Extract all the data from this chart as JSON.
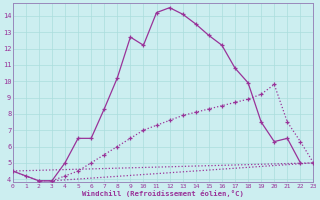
{
  "background_color": "#cceef0",
  "grid_color": "#aadddd",
  "line_color": "#993399",
  "xlim": [
    0,
    23
  ],
  "ylim": [
    3.8,
    14.8
  ],
  "xticks": [
    0,
    1,
    2,
    3,
    4,
    5,
    6,
    7,
    8,
    9,
    10,
    11,
    12,
    13,
    14,
    15,
    16,
    17,
    18,
    19,
    20,
    21,
    22,
    23
  ],
  "yticks": [
    4,
    5,
    6,
    7,
    8,
    9,
    10,
    11,
    12,
    13,
    14
  ],
  "xlabel": "Windchill (Refroidissement éolien,°C)",
  "curve1_x": [
    0,
    1,
    2,
    3,
    4,
    5,
    6,
    7,
    8,
    9,
    10,
    11,
    12,
    13,
    14,
    15,
    16,
    17,
    18,
    19,
    20,
    21,
    22
  ],
  "curve1_y": [
    4.5,
    4.2,
    3.9,
    3.9,
    5.0,
    6.5,
    6.5,
    8.3,
    10.2,
    12.7,
    12.2,
    14.2,
    14.5,
    14.1,
    13.5,
    12.8,
    12.2,
    10.8,
    9.9,
    7.5,
    6.3,
    6.5,
    5.0
  ],
  "curve2_x": [
    2,
    3,
    4,
    5,
    6,
    7,
    8,
    9,
    10,
    11,
    12,
    13,
    14,
    15,
    16,
    17,
    18,
    19,
    20,
    21,
    22,
    23
  ],
  "curve2_y": [
    3.9,
    3.9,
    4.2,
    4.5,
    5.0,
    5.5,
    6.0,
    6.5,
    7.0,
    7.3,
    7.6,
    7.9,
    8.1,
    8.3,
    8.5,
    8.7,
    8.9,
    9.2,
    9.8,
    7.5,
    6.3,
    5.0
  ],
  "curve3_x": [
    0,
    23
  ],
  "curve3_y": [
    4.5,
    5.0
  ],
  "curve4_x": [
    0,
    2,
    3,
    23
  ],
  "curve4_y": [
    4.5,
    3.9,
    3.9,
    5.0
  ]
}
